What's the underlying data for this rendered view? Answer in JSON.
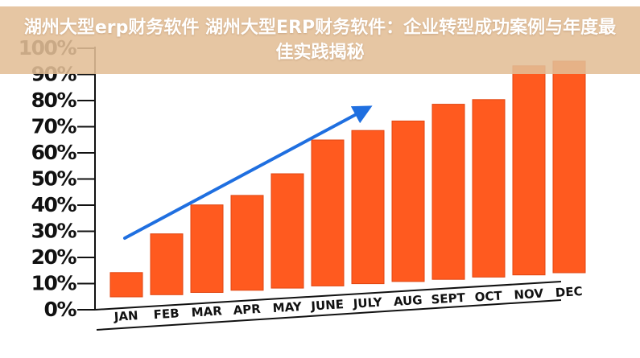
{
  "banner": {
    "title": "湖州大型erp财务软件 湖州大型ERP财务软件：企业转型成功案例与年度最佳实践揭秘"
  },
  "colors": {
    "bar": "#ff5a1f",
    "bar_edge": "#e04510",
    "arrow": "#1f6fe0",
    "axis": "#111111",
    "banner_bg": "#e2be96"
  },
  "chart_data": {
    "type": "bar",
    "title": "",
    "xlabel": "",
    "ylabel": "",
    "categories": [
      "JAN",
      "FEB",
      "MAR",
      "APR",
      "MAY",
      "JUNE",
      "JULY",
      "AUG",
      "SEPT",
      "OCT",
      "NOV",
      "DEC"
    ],
    "values": [
      10,
      25,
      36,
      39,
      47,
      60,
      63,
      66,
      72,
      73,
      86,
      87
    ],
    "yticks": [
      "0%",
      "10%",
      "20%",
      "30%",
      "40%",
      "50%",
      "60%",
      "70%",
      "80%",
      "90%",
      "100%"
    ],
    "ylim": [
      0,
      100
    ],
    "grid": false,
    "legend": "none",
    "trend_arrow": "rising"
  }
}
